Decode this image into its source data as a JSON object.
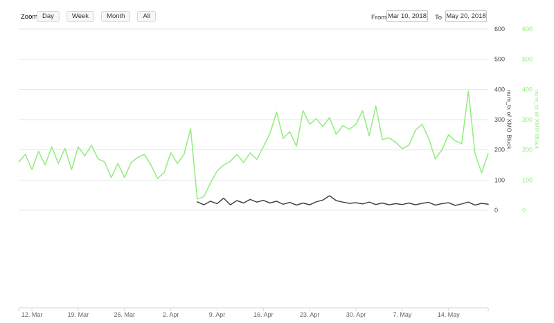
{
  "range_selector": {
    "zoom_label": "Zoom",
    "buttons": [
      {
        "label": "Day"
      },
      {
        "label": "Week"
      },
      {
        "label": "Month"
      },
      {
        "label": "All"
      }
    ],
    "from_label": "From",
    "from_value": "Mar 10, 2018",
    "to_label": "To",
    "to_value": "May 20, 2018"
  },
  "chart_data": {
    "type": "line",
    "title": "",
    "xlabel": "",
    "x_start": "Mar 10, 2018",
    "x_end": "May 20, 2018",
    "x_range_days": 71,
    "x_ticks": [
      {
        "label": "12. Mar",
        "day": 2
      },
      {
        "label": "19. Mar",
        "day": 9
      },
      {
        "label": "26. Mar",
        "day": 16
      },
      {
        "label": "2. Apr",
        "day": 23
      },
      {
        "label": "9. Apr",
        "day": 30
      },
      {
        "label": "16. Apr",
        "day": 37
      },
      {
        "label": "23. Apr",
        "day": 44
      },
      {
        "label": "30. Apr",
        "day": 51
      },
      {
        "label": "7. May",
        "day": 58
      },
      {
        "label": "14. May",
        "day": 65
      }
    ],
    "ylim": [
      0,
      600
    ],
    "y_ticks": [
      0,
      100,
      200,
      300,
      400,
      500,
      600
    ],
    "grid": "horizontal-only",
    "legend": "none",
    "axes": [
      {
        "title": "num_tx of XMO Block",
        "color": "#434348",
        "side": "right"
      },
      {
        "title": "num_tx of XMR Block",
        "color": "#90ed7d",
        "side": "right"
      }
    ],
    "colors": {
      "grid_line": "#e6e6e6",
      "axis_line": "#ccd6eb",
      "x_tick_label": "#666666",
      "xmo": "#434348",
      "xmr": "#90ed7d"
    },
    "series": [
      {
        "name": "num_tx of XMO Block",
        "color": "#434348",
        "x_unit": "days since Mar 10, 2018",
        "values": [
          null,
          null,
          null,
          null,
          null,
          null,
          null,
          null,
          null,
          null,
          null,
          null,
          null,
          null,
          null,
          null,
          null,
          null,
          null,
          null,
          null,
          null,
          null,
          null,
          null,
          null,
          null,
          28,
          18,
          30,
          22,
          40,
          18,
          32,
          24,
          36,
          27,
          33,
          24,
          30,
          20,
          26,
          17,
          24,
          18,
          28,
          34,
          48,
          32,
          27,
          23,
          25,
          21,
          27,
          19,
          24,
          18,
          22,
          19,
          24,
          18,
          23,
          26,
          17,
          22,
          25,
          16,
          21,
          27,
          17,
          23,
          20
        ]
      },
      {
        "name": "num_tx of XMR Block",
        "color": "#90ed7d",
        "x_unit": "days since Mar 10, 2018",
        "values": [
          160,
          185,
          135,
          195,
          150,
          210,
          155,
          205,
          135,
          210,
          180,
          215,
          170,
          160,
          108,
          155,
          108,
          158,
          175,
          185,
          150,
          105,
          125,
          190,
          155,
          185,
          270,
          37,
          45,
          90,
          130,
          150,
          162,
          185,
          158,
          190,
          168,
          210,
          255,
          325,
          238,
          260,
          212,
          330,
          285,
          303,
          277,
          307,
          252,
          280,
          268,
          285,
          330,
          246,
          345,
          234,
          240,
          225,
          204,
          215,
          265,
          285,
          238,
          170,
          200,
          250,
          230,
          220,
          395,
          188,
          124,
          188
        ]
      }
    ]
  }
}
